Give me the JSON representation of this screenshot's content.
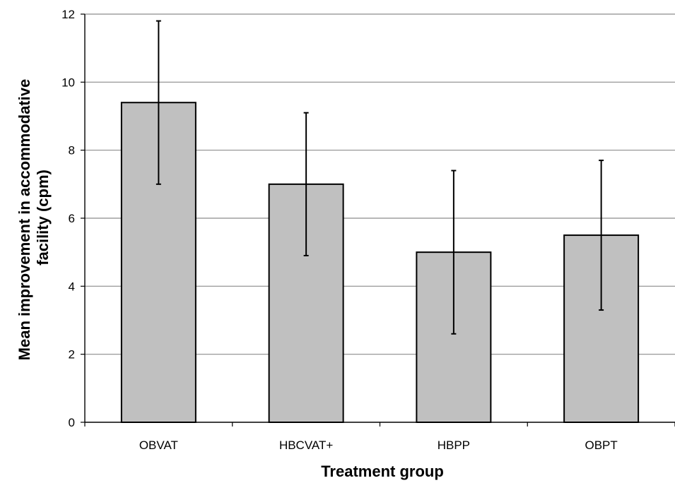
{
  "chart_data": {
    "type": "bar",
    "title": "",
    "xlabel": "Treatment group",
    "ylabel_lines": [
      "Mean improvement in accommodative",
      "facility (cpm)"
    ],
    "categories": [
      "OBVAT",
      "HBCVAT+",
      "HBPP",
      "OBPT"
    ],
    "values": [
      9.4,
      7.0,
      5.0,
      5.5
    ],
    "error_bars": {
      "lower": [
        7.0,
        4.9,
        2.6,
        3.3
      ],
      "upper": [
        11.8,
        9.1,
        7.4,
        7.7
      ]
    },
    "ylim": [
      0,
      12
    ],
    "yticks": [
      0,
      2,
      4,
      6,
      8,
      10,
      12
    ],
    "grid": true,
    "legend": "none",
    "colors": {
      "bar_fill": "#c0c0c0",
      "bar_stroke": "#000000",
      "grid": "#8c8c8c",
      "axis": "#000000"
    }
  }
}
